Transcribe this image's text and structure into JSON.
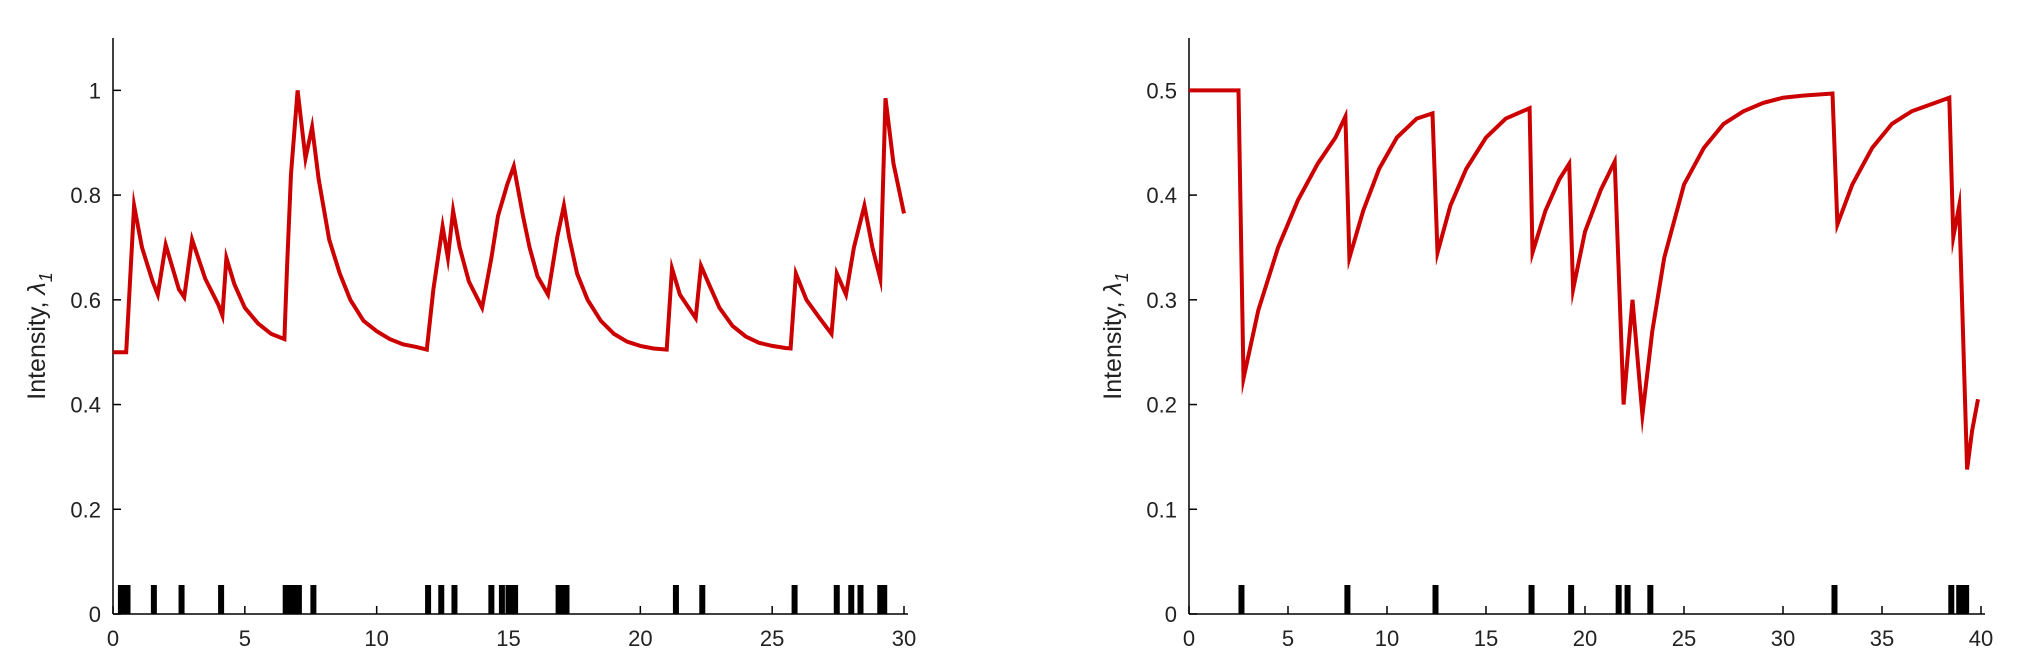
{
  "colors": {
    "intensity_line": "#cc0000",
    "event_marks": "#000000",
    "axes": "#000000"
  },
  "chart_data": [
    {
      "type": "line",
      "title": "",
      "xlabel": "",
      "ylabel": "Intensity, ",
      "ylabel_symbol": "λ",
      "ylabel_subscript": "1",
      "xlim": [
        0,
        30
      ],
      "ylim": [
        0,
        1.1
      ],
      "xticks": [
        0,
        5,
        10,
        15,
        20,
        25,
        30
      ],
      "yticks": [
        0,
        0.2,
        0.4,
        0.6,
        0.8,
        1
      ],
      "xtick_labels": [
        "0",
        "5",
        "10",
        "15",
        "20",
        "25",
        "30"
      ],
      "ytick_labels": [
        "0",
        "0.2",
        "0.4",
        "0.6",
        "0.8",
        "1"
      ],
      "grid": false,
      "series": [
        {
          "x": [
            0,
            0.3,
            0.5,
            0.8,
            1.1,
            1.5,
            1.7,
            2.0,
            2.5,
            2.7,
            3.0,
            3.5,
            4.0,
            4.15,
            4.3,
            4.6,
            5.0,
            5.5,
            6.0,
            6.5,
            6.6,
            6.75,
            7.0,
            7.3,
            7.55,
            7.8,
            8.2,
            8.6,
            9.0,
            9.5,
            10.0,
            10.5,
            11.0,
            11.5,
            11.9,
            12.15,
            12.5,
            12.7,
            12.9,
            13.15,
            13.5,
            14.0,
            14.35,
            14.6,
            14.95,
            15.2,
            15.55,
            15.8,
            16.1,
            16.5,
            16.85,
            17.1,
            17.3,
            17.6,
            18.0,
            18.5,
            19.0,
            19.5,
            20.0,
            20.5,
            21.0,
            21.2,
            21.5,
            22.1,
            22.3,
            22.6,
            23.0,
            23.5,
            24.0,
            24.5,
            25.0,
            25.5,
            25.7,
            25.9,
            26.3,
            26.8,
            27.25,
            27.45,
            27.8,
            28.1,
            28.5,
            28.8,
            29.1,
            29.3,
            29.6,
            30.0
          ],
          "y": [
            0.5,
            0.5,
            0.5,
            0.78,
            0.7,
            0.635,
            0.61,
            0.705,
            0.62,
            0.605,
            0.715,
            0.64,
            0.59,
            0.57,
            0.68,
            0.63,
            0.585,
            0.555,
            0.535,
            0.525,
            0.66,
            0.84,
            1.0,
            0.87,
            0.93,
            0.83,
            0.715,
            0.65,
            0.6,
            0.56,
            0.54,
            0.525,
            0.515,
            0.51,
            0.505,
            0.62,
            0.74,
            0.68,
            0.77,
            0.7,
            0.635,
            0.585,
            0.68,
            0.76,
            0.82,
            0.855,
            0.76,
            0.7,
            0.645,
            0.61,
            0.72,
            0.78,
            0.72,
            0.65,
            0.6,
            0.56,
            0.535,
            0.52,
            0.512,
            0.507,
            0.505,
            0.66,
            0.61,
            0.565,
            0.665,
            0.63,
            0.585,
            0.55,
            0.53,
            0.518,
            0.512,
            0.508,
            0.507,
            0.65,
            0.6,
            0.565,
            0.535,
            0.65,
            0.61,
            0.7,
            0.78,
            0.7,
            0.64,
            0.985,
            0.86,
            0.765
          ]
        }
      ],
      "events": [
        0.3,
        0.45,
        0.55,
        1.55,
        2.6,
        4.1,
        6.55,
        6.75,
        6.9,
        7.05,
        7.6,
        11.95,
        12.45,
        12.95,
        14.35,
        14.75,
        15.0,
        15.15,
        15.25,
        16.9,
        17.05,
        17.2,
        21.35,
        22.35,
        25.85,
        27.45,
        28.0,
        28.35,
        29.1,
        29.25
      ]
    },
    {
      "type": "line",
      "title": "",
      "xlabel": "",
      "ylabel": "Intensity, ",
      "ylabel_symbol": "λ",
      "ylabel_subscript": "1",
      "xlim": [
        0,
        40
      ],
      "ylim": [
        0,
        0.55
      ],
      "xticks": [
        0,
        5,
        10,
        15,
        20,
        25,
        30,
        35,
        40
      ],
      "yticks": [
        0,
        0.1,
        0.2,
        0.3,
        0.4,
        0.5
      ],
      "xtick_labels": [
        "0",
        "5",
        "10",
        "15",
        "20",
        "25",
        "30",
        "35",
        "40"
      ],
      "ytick_labels": [
        "0",
        "0.1",
        "0.2",
        "0.3",
        "0.4",
        "0.5"
      ],
      "grid": false,
      "series": [
        {
          "x": [
            0,
            2.5,
            2.75,
            3.5,
            4.5,
            5.5,
            6.5,
            7.4,
            7.9,
            8.1,
            8.8,
            9.6,
            10.5,
            11.5,
            12.3,
            12.55,
            13.2,
            14.0,
            15.0,
            16.0,
            17.2,
            17.35,
            18.0,
            18.7,
            19.2,
            19.4,
            20.0,
            20.8,
            21.5,
            21.95,
            22.4,
            22.9,
            23.4,
            24.0,
            25.0,
            26.0,
            27.0,
            28.0,
            29.0,
            30.0,
            31.0,
            32.5,
            32.75,
            33.5,
            34.5,
            35.5,
            36.5,
            38.4,
            38.6,
            38.9,
            39.3,
            39.55,
            39.85
          ],
          "y": [
            0.5,
            0.5,
            0.225,
            0.29,
            0.35,
            0.395,
            0.43,
            0.455,
            0.475,
            0.34,
            0.385,
            0.425,
            0.455,
            0.473,
            0.478,
            0.345,
            0.39,
            0.425,
            0.455,
            0.473,
            0.483,
            0.345,
            0.385,
            0.415,
            0.43,
            0.31,
            0.365,
            0.405,
            0.432,
            0.2,
            0.3,
            0.19,
            0.27,
            0.34,
            0.41,
            0.445,
            0.468,
            0.48,
            0.488,
            0.493,
            0.495,
            0.497,
            0.372,
            0.41,
            0.445,
            0.468,
            0.48,
            0.493,
            0.36,
            0.39,
            0.138,
            0.175,
            0.205
          ]
        }
      ],
      "events": [
        2.65,
        8.0,
        12.45,
        17.3,
        19.3,
        21.7,
        22.15,
        23.3,
        32.6,
        38.5,
        38.9,
        39.1,
        39.25
      ]
    }
  ]
}
